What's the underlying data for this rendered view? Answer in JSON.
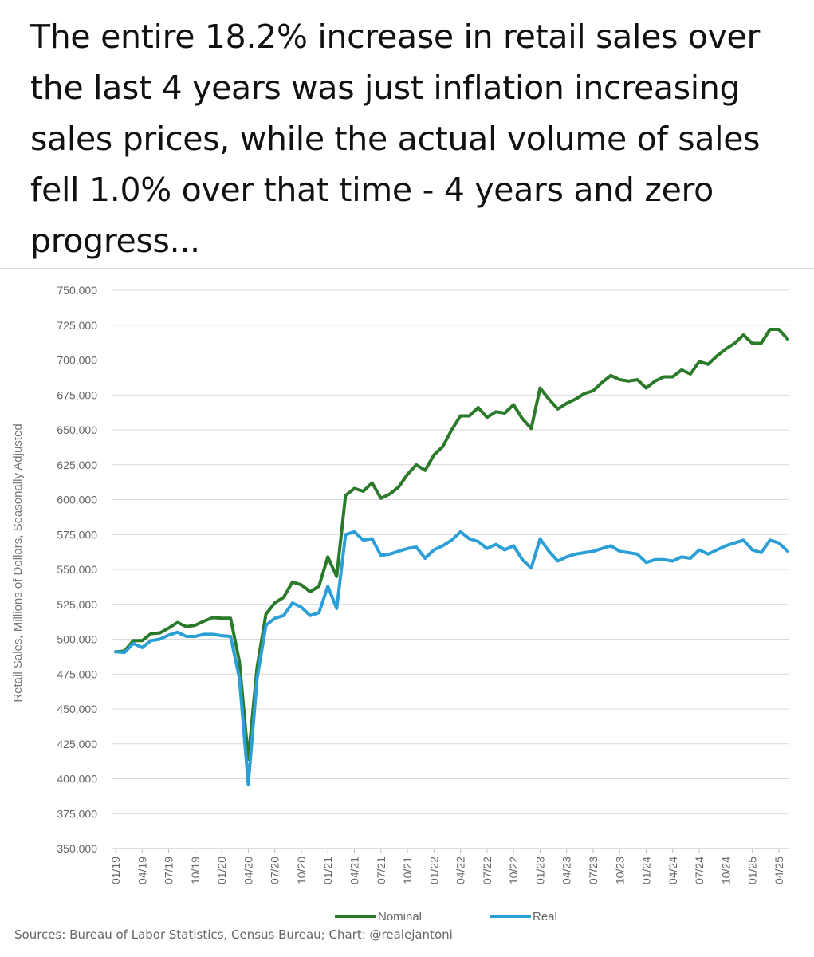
{
  "headline": "The entire 18.2% increase in retail sales over the last 4 years was just inflation increasing sales prices, while the actual volume of sales fell 1.0% over that time - 4 years and zero progress...",
  "source": "Sources: Bureau of Labor Statistics, Census Bureau; Chart: @realejantoni",
  "colors": {
    "nominal": "#2a7a2a",
    "real": "#2b9fd6",
    "grid": "#d9d9d9",
    "axis_text": "#666666"
  },
  "chart_data": {
    "type": "line",
    "title": "",
    "xlabel": "",
    "ylabel": "Retail Sales, Millions of Dollars, Seasonally Adjusted",
    "ylim": [
      350000,
      750000
    ],
    "yticks": [
      750000,
      725000,
      700000,
      675000,
      650000,
      625000,
      600000,
      575000,
      550000,
      525000,
      500000,
      475000,
      450000,
      425000,
      400000,
      375000,
      350000
    ],
    "ytick_labels": [
      "750,000",
      "725,000",
      "700,000",
      "675,000",
      "650,000",
      "625,000",
      "600,000",
      "575,000",
      "550,000",
      "525,000",
      "500,000",
      "475,000",
      "450,000",
      "425,000",
      "400,000",
      "375,000",
      "350,000"
    ],
    "xtick_labels": [
      "01/19",
      "04/19",
      "07/19",
      "10/19",
      "01/20",
      "04/20",
      "07/20",
      "10/20",
      "01/21",
      "04/21",
      "07/21",
      "10/21",
      "01/22",
      "04/22",
      "07/22",
      "10/22",
      "01/23",
      "04/23",
      "07/23",
      "10/23",
      "01/24",
      "04/24",
      "07/24",
      "10/24",
      "01/25",
      "04/25"
    ],
    "grid": true,
    "legend_position": "bottom",
    "x": [
      "01/19",
      "02/19",
      "03/19",
      "04/19",
      "05/19",
      "06/19",
      "07/19",
      "08/19",
      "09/19",
      "10/19",
      "11/19",
      "12/19",
      "01/20",
      "02/20",
      "03/20",
      "04/20",
      "05/20",
      "06/20",
      "07/20",
      "08/20",
      "09/20",
      "10/20",
      "11/20",
      "12/20",
      "01/21",
      "02/21",
      "03/21",
      "04/21",
      "05/21",
      "06/21",
      "07/21",
      "08/21",
      "09/21",
      "10/21",
      "11/21",
      "12/21",
      "01/22",
      "02/22",
      "03/22",
      "04/22",
      "05/22",
      "06/22",
      "07/22",
      "08/22",
      "09/22",
      "10/22",
      "11/22",
      "12/22",
      "01/23",
      "02/23",
      "03/23",
      "04/23",
      "05/23",
      "06/23",
      "07/23",
      "08/23",
      "09/23",
      "10/23",
      "11/23",
      "12/23",
      "01/24",
      "02/24",
      "03/24",
      "04/24",
      "05/24",
      "06/24",
      "07/24",
      "08/24",
      "09/24",
      "10/24",
      "11/24",
      "12/24",
      "01/25",
      "02/25",
      "03/25",
      "04/25",
      "05/25"
    ],
    "series": [
      {
        "name": "Nominal",
        "values": [
          491000,
          491500,
          499000,
          499000,
          504000,
          504500,
          508000,
          512000,
          509000,
          510000,
          513000,
          515500,
          515000,
          515000,
          484000,
          414000,
          480000,
          518000,
          526000,
          530000,
          541000,
          539000,
          534000,
          538000,
          559000,
          545000,
          603000,
          608000,
          606000,
          612000,
          601000,
          604000,
          609000,
          618000,
          625000,
          621000,
          632000,
          638000,
          650000,
          660000,
          660000,
          666000,
          659000,
          663000,
          662000,
          668000,
          658000,
          651000,
          680000,
          672000,
          665000,
          669000,
          672000,
          676000,
          678000,
          684000,
          689000,
          686000,
          685000,
          686000,
          680000,
          685000,
          688000,
          688000,
          693000,
          690000,
          699000,
          697000,
          703000,
          708000,
          712000,
          718000,
          712000,
          712000,
          722000,
          722000,
          715000
        ]
      },
      {
        "name": "Real",
        "values": [
          491000,
          490500,
          497000,
          494000,
          499000,
          500000,
          503000,
          505000,
          502000,
          502000,
          503500,
          503500,
          502500,
          502000,
          472000,
          396000,
          472000,
          510000,
          515000,
          517000,
          526000,
          523000,
          517000,
          519000,
          538000,
          522000,
          575000,
          577000,
          571000,
          572000,
          560000,
          561000,
          563000,
          565000,
          566000,
          558000,
          564000,
          567000,
          571000,
          577000,
          572000,
          570000,
          565000,
          568000,
          564000,
          567000,
          557000,
          551000,
          572000,
          563000,
          556000,
          559000,
          561000,
          562000,
          563000,
          565000,
          567000,
          563000,
          562000,
          561000,
          555000,
          557000,
          557000,
          556000,
          559000,
          558000,
          564000,
          561000,
          564000,
          567000,
          569000,
          571000,
          564000,
          562000,
          571000,
          569000,
          563000
        ]
      }
    ]
  }
}
